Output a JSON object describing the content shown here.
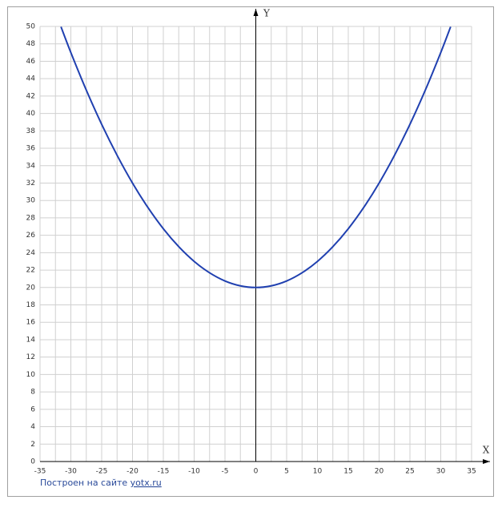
{
  "chart_data": {
    "type": "line",
    "x": [
      -31.6,
      -30,
      -27.5,
      -25,
      -22.5,
      -20,
      -17.5,
      -15,
      -12.5,
      -10,
      -7.5,
      -5,
      -2.5,
      0,
      2.5,
      5,
      7.5,
      10,
      12.5,
      15,
      17.5,
      20,
      22.5,
      25,
      27.5,
      30,
      31.6
    ],
    "series": [
      {
        "name": "y",
        "color": "#2040b0",
        "values": [
          49.96,
          47,
          42.69,
          38.75,
          35.19,
          32,
          29.19,
          26.75,
          24.69,
          23,
          21.69,
          20.75,
          20.19,
          20,
          20.19,
          20.75,
          21.69,
          23,
          24.69,
          26.75,
          29.19,
          32,
          35.19,
          38.75,
          42.69,
          47,
          49.96
        ]
      }
    ],
    "xlim": [
      -35,
      35
    ],
    "ylim": [
      0,
      50
    ],
    "xticks": [
      -35,
      -30,
      -25,
      -20,
      -15,
      -10,
      -5,
      0,
      5,
      10,
      15,
      20,
      25,
      30,
      35
    ],
    "yticks": [
      0,
      2,
      4,
      6,
      8,
      10,
      12,
      14,
      16,
      18,
      20,
      22,
      24,
      26,
      28,
      30,
      32,
      34,
      36,
      38,
      40,
      42,
      44,
      46,
      48,
      50
    ],
    "xlabel": "X",
    "ylabel": "Y",
    "grid": true,
    "credit": "Построен на сайте",
    "credit_link": "yotx.ru"
  }
}
